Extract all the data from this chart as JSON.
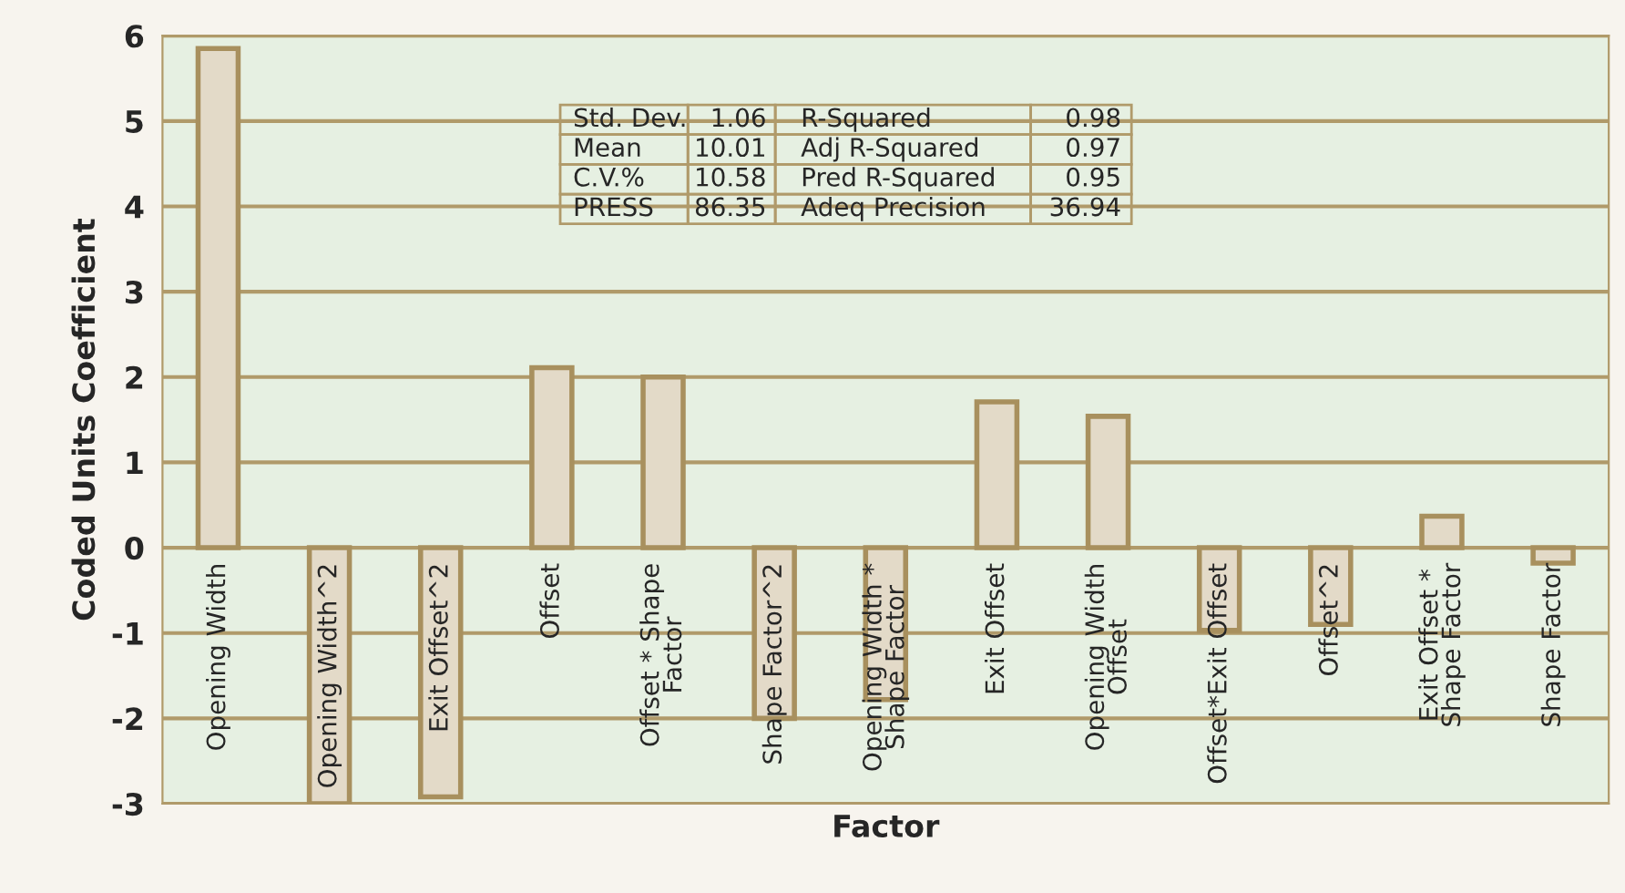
{
  "chart_data": {
    "type": "bar",
    "xlabel": "Factor",
    "ylabel": "Coded Units Coefficient",
    "categories": [
      "Opening Width",
      "Opening Width^2",
      "Exit Offset^2",
      "Offset",
      "Offset * Shape\nFactor",
      "Shape Factor^2",
      "Opening Width *\nShape Factor",
      "Exit Offset",
      "Opening Width\nOffset",
      "Offset*Exit Offset",
      "Offset^2",
      "Exit Offset *\nShape Factor",
      "Shape Factor"
    ],
    "values": [
      5.85,
      -3.0,
      -2.92,
      2.11,
      2.0,
      -2.0,
      -1.78,
      1.71,
      1.54,
      -0.97,
      -0.9,
      0.37,
      -0.18
    ],
    "color": "#e3dac8",
    "ylim": [
      -3,
      6
    ],
    "yticks": [
      -3,
      -2,
      -1,
      0,
      1,
      2,
      3,
      4,
      5,
      6
    ],
    "grid": "y",
    "annotations": [
      "Std. Dev.",
      "1.06",
      "R-Squared",
      "0.98",
      "Mean",
      "10.01",
      "Adj R-Squared",
      "0.97",
      "C.V.%",
      "10.58",
      "Pred R-Squared",
      "0.95",
      "PRESS",
      "86.35",
      "Adeq Precision",
      "36.94"
    ]
  }
}
